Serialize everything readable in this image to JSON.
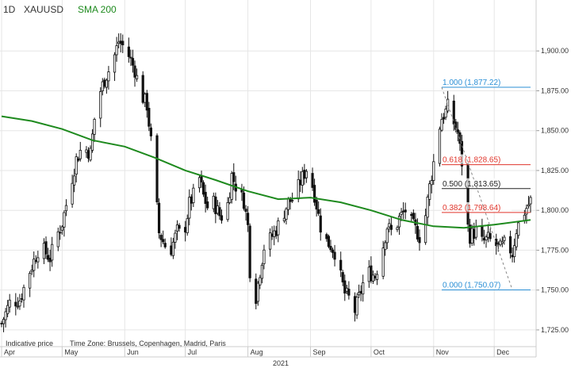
{
  "header": {
    "timeframe": "1D",
    "symbol": "XAUUSD",
    "indicator": "SMA 200",
    "indicator_color": "#1e8a1e"
  },
  "footer": {
    "note_price": "Indicative price",
    "note_tz": "Time Zone: Brussels, Copenhagen, Madrid, Paris",
    "year": "2021"
  },
  "colors": {
    "candle": "#111111",
    "sma": "#1e8a1e",
    "fib_blue": "#2a8fd6",
    "fib_red": "#e0352b",
    "fib_black": "#222222",
    "grid": "#e6e6e6"
  },
  "chart_data": {
    "type": "candlestick",
    "instrument": "XAUUSD",
    "timeframe": "1D",
    "ylim": [
      1717,
      1922
    ],
    "y_ticks": [
      1725,
      1750,
      1775,
      1800,
      1825,
      1850,
      1875,
      1900
    ],
    "y_tick_labels": [
      "1,725.00",
      "1,750.00",
      "1,775.00",
      "1,800.00",
      "1,825.00",
      "1,850.00",
      "1,875.00",
      "1,900.00"
    ],
    "x_ticks": [
      "Apr",
      "May",
      "Jun",
      "Jul",
      "Aug",
      "Sep",
      "Oct",
      "Nov",
      "Dec"
    ],
    "x_tick_days": [
      0,
      30,
      61,
      91,
      122,
      153,
      183,
      214,
      244
    ],
    "x_range_days": [
      0,
      262
    ],
    "close_path": [
      [
        0,
        1729
      ],
      [
        4,
        1742
      ],
      [
        9,
        1744
      ],
      [
        14,
        1762
      ],
      [
        19,
        1778
      ],
      [
        24,
        1770
      ],
      [
        27,
        1783
      ],
      [
        30,
        1792
      ],
      [
        34,
        1815
      ],
      [
        37,
        1832
      ],
      [
        40,
        1840
      ],
      [
        44,
        1836
      ],
      [
        47,
        1868
      ],
      [
        51,
        1882
      ],
      [
        55,
        1893
      ],
      [
        58,
        1906
      ],
      [
        61,
        1902
      ],
      [
        63,
        1897
      ],
      [
        66,
        1888
      ],
      [
        69,
        1873
      ],
      [
        72,
        1866
      ],
      [
        75,
        1832
      ],
      [
        78,
        1786
      ],
      [
        81,
        1778
      ],
      [
        84,
        1776
      ],
      [
        87,
        1787
      ],
      [
        90,
        1783
      ],
      [
        93,
        1804
      ],
      [
        96,
        1812
      ],
      [
        98,
        1820
      ],
      [
        100,
        1809
      ],
      [
        102,
        1802
      ],
      [
        105,
        1805
      ],
      [
        108,
        1797
      ],
      [
        111,
        1795
      ],
      [
        114,
        1822
      ],
      [
        117,
        1812
      ],
      [
        120,
        1806
      ],
      [
        122,
        1790
      ],
      [
        124,
        1735
      ],
      [
        126,
        1746
      ],
      [
        128,
        1762
      ],
      [
        130,
        1777
      ],
      [
        133,
        1782
      ],
      [
        136,
        1788
      ],
      [
        139,
        1796
      ],
      [
        142,
        1805
      ],
      [
        145,
        1808
      ],
      [
        148,
        1818
      ],
      [
        151,
        1826
      ],
      [
        153,
        1821
      ],
      [
        155,
        1810
      ],
      [
        158,
        1790
      ],
      [
        160,
        1782
      ],
      [
        163,
        1778
      ],
      [
        166,
        1772
      ],
      [
        168,
        1758
      ],
      [
        170,
        1748
      ],
      [
        172,
        1745
      ],
      [
        174,
        1733
      ],
      [
        176,
        1741
      ],
      [
        179,
        1754
      ],
      [
        182,
        1761
      ],
      [
        185,
        1759
      ],
      [
        188,
        1772
      ],
      [
        191,
        1790
      ],
      [
        194,
        1785
      ],
      [
        197,
        1795
      ],
      [
        200,
        1800
      ],
      [
        203,
        1792
      ],
      [
        206,
        1786
      ],
      [
        208,
        1781
      ],
      [
        210,
        1797
      ],
      [
        212,
        1815
      ],
      [
        214,
        1830
      ],
      [
        216,
        1848
      ],
      [
        218,
        1858
      ],
      [
        220,
        1862
      ],
      [
        222,
        1868
      ],
      [
        224,
        1855
      ],
      [
        226,
        1848
      ],
      [
        228,
        1830
      ],
      [
        230,
        1795
      ],
      [
        232,
        1784
      ],
      [
        235,
        1787
      ],
      [
        238,
        1780
      ],
      [
        241,
        1782
      ],
      [
        244,
        1779
      ],
      [
        247,
        1776
      ],
      [
        250,
        1780
      ],
      [
        253,
        1773
      ],
      [
        255,
        1788
      ],
      [
        258,
        1797
      ],
      [
        262,
        1806
      ]
    ],
    "series": [
      {
        "name": "SMA 200",
        "x": [
          0,
          15,
          30,
          45,
          61,
          76,
          91,
          106,
          122,
          137,
          153,
          168,
          183,
          198,
          214,
          229,
          244,
          262
        ],
        "values": [
          1859,
          1856,
          1851,
          1844,
          1840,
          1833,
          1825,
          1819,
          1812,
          1807,
          1808,
          1805,
          1800,
          1794,
          1790,
          1789,
          1791,
          1794
        ]
      }
    ],
    "fibonacci": [
      {
        "label": "1.000 (1,877.22)",
        "value": 1877.22,
        "color": "#2a8fd6"
      },
      {
        "label": "0.618 (1,828.65)",
        "value": 1828.65,
        "color": "#e0352b"
      },
      {
        "label": "0.500 (1,813.65)",
        "value": 1813.65,
        "color": "#222222"
      },
      {
        "label": "0.382 (1,798.64)",
        "value": 1798.64,
        "color": "#e0352b"
      },
      {
        "label": "0.000 (1,750.07)",
        "value": 1750.07,
        "color": "#2a8fd6"
      }
    ],
    "fib_x_range_days": [
      218,
      262
    ],
    "grid": true
  }
}
